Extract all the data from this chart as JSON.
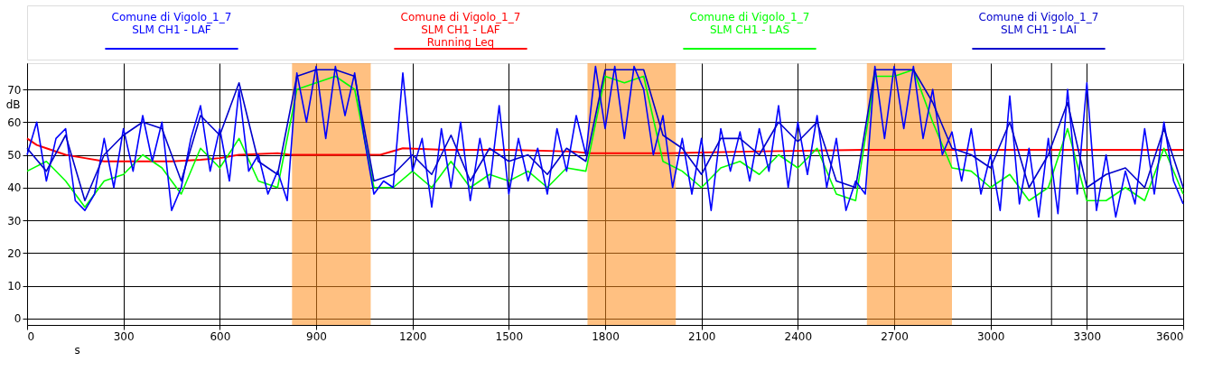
{
  "chart_data": {
    "type": "line",
    "xlabel": "s",
    "ylabel": "dB",
    "xlim": [
      0,
      3600
    ],
    "xticks": [
      0,
      300,
      600,
      900,
      1200,
      1500,
      1800,
      2100,
      2400,
      2700,
      3000,
      3300,
      3600
    ],
    "ylim": [
      -2,
      78
    ],
    "yticks": [
      0,
      10,
      20,
      30,
      40,
      50,
      60,
      70
    ],
    "grid": true,
    "legend": "top",
    "line_style": "solid",
    "marker": "none",
    "bands": [
      {
        "axis": "x",
        "from": 825,
        "to": 1070,
        "color": "#ff8c1a"
      },
      {
        "axis": "x",
        "from": 1745,
        "to": 2020,
        "color": "#ff8c1a"
      },
      {
        "axis": "x",
        "from": 2615,
        "to": 2880,
        "color": "#ff8c1a"
      }
    ],
    "ref_lines": [
      {
        "axis": "x",
        "value": 3190,
        "color": "#000000"
      }
    ],
    "series": [
      {
        "name": "Comune di Vigolo_1_7\nSLM CH1 - LAF\nRunning Leq",
        "color": "#ff0000",
        "x": [
          0,
          30,
          60,
          120,
          180,
          240,
          300,
          450,
          540,
          600,
          660,
          780,
          820,
          900,
          1100,
          1170,
          1300,
          1500,
          1700,
          1750,
          2000,
          2250,
          2600,
          2700,
          3000,
          3600
        ],
        "values": [
          55,
          53,
          52,
          50,
          49,
          48,
          48,
          48,
          48.5,
          49,
          50,
          50.5,
          50,
          50,
          50,
          52,
          51.5,
          51.5,
          51,
          50.5,
          50.5,
          51,
          51.5,
          51.5,
          51.5,
          51.5
        ]
      },
      {
        "name": "Comune di Vigolo_1_7\nSLM CH1 - LAS",
        "color": "#00ff00",
        "x": [
          0,
          60,
          120,
          180,
          240,
          300,
          360,
          420,
          480,
          540,
          600,
          660,
          720,
          780,
          840,
          900,
          960,
          1020,
          1080,
          1140,
          1200,
          1260,
          1320,
          1380,
          1440,
          1500,
          1560,
          1620,
          1680,
          1740,
          1800,
          1860,
          1920,
          1980,
          2040,
          2100,
          2160,
          2220,
          2280,
          2340,
          2400,
          2460,
          2520,
          2580,
          2640,
          2700,
          2760,
          2820,
          2880,
          2940,
          3000,
          3060,
          3120,
          3180,
          3240,
          3300,
          3360,
          3420,
          3480,
          3540,
          3600
        ],
        "values": [
          45,
          48,
          42,
          34,
          42,
          44,
          50,
          46,
          38,
          52,
          46,
          55,
          42,
          40,
          70,
          72,
          74,
          70,
          40,
          40,
          45,
          40,
          48,
          40,
          44,
          42,
          45,
          40,
          46,
          45,
          74,
          72,
          74,
          48,
          45,
          40,
          46,
          48,
          44,
          50,
          46,
          52,
          38,
          36,
          74,
          74,
          76,
          60,
          46,
          45,
          40,
          44,
          36,
          40,
          58,
          36,
          36,
          40,
          36,
          52,
          38
        ]
      },
      {
        "name": "Comune di Vigolo_1_7\nSLM CH1 - LAF",
        "color": "#0000ff",
        "x": [
          0,
          30,
          60,
          90,
          120,
          150,
          180,
          210,
          240,
          270,
          300,
          330,
          360,
          390,
          420,
          450,
          480,
          510,
          540,
          570,
          600,
          630,
          660,
          690,
          720,
          750,
          780,
          810,
          840,
          870,
          900,
          930,
          960,
          990,
          1020,
          1050,
          1080,
          1110,
          1140,
          1170,
          1200,
          1230,
          1260,
          1290,
          1320,
          1350,
          1380,
          1410,
          1440,
          1470,
          1500,
          1530,
          1560,
          1590,
          1620,
          1650,
          1680,
          1710,
          1740,
          1770,
          1800,
          1830,
          1860,
          1890,
          1920,
          1950,
          1980,
          2010,
          2040,
          2070,
          2100,
          2130,
          2160,
          2190,
          2220,
          2250,
          2280,
          2310,
          2340,
          2370,
          2400,
          2430,
          2460,
          2490,
          2520,
          2550,
          2580,
          2610,
          2640,
          2670,
          2700,
          2730,
          2760,
          2790,
          2820,
          2850,
          2880,
          2910,
          2940,
          2970,
          3000,
          3030,
          3060,
          3090,
          3120,
          3150,
          3180,
          3210,
          3240,
          3270,
          3300,
          3330,
          3360,
          3390,
          3420,
          3450,
          3480,
          3510,
          3540,
          3570,
          3600
        ],
        "values": [
          50,
          60,
          42,
          55,
          58,
          36,
          33,
          38,
          55,
          40,
          58,
          45,
          62,
          48,
          60,
          33,
          40,
          55,
          65,
          45,
          58,
          42,
          70,
          45,
          50,
          38,
          45,
          36,
          75,
          60,
          77,
          55,
          77,
          62,
          75,
          55,
          38,
          42,
          40,
          75,
          45,
          55,
          34,
          58,
          40,
          60,
          36,
          55,
          40,
          65,
          38,
          55,
          42,
          52,
          38,
          58,
          45,
          62,
          50,
          77,
          58,
          77,
          55,
          77,
          70,
          50,
          62,
          40,
          55,
          38,
          55,
          33,
          58,
          45,
          57,
          42,
          58,
          45,
          65,
          40,
          60,
          44,
          62,
          40,
          55,
          33,
          42,
          38,
          77,
          55,
          77,
          58,
          77,
          55,
          70,
          50,
          57,
          42,
          58,
          38,
          50,
          33,
          68,
          35,
          52,
          31,
          55,
          32,
          70,
          38,
          72,
          33,
          50,
          31,
          45,
          35,
          58,
          38,
          60,
          42,
          35
        ]
      },
      {
        "name": "Comune di Vigolo_1_7\nSLM CH1 - LAI",
        "color": "#0000cc",
        "x": [
          0,
          60,
          120,
          180,
          240,
          300,
          360,
          420,
          480,
          540,
          600,
          660,
          720,
          780,
          840,
          900,
          960,
          1020,
          1080,
          1140,
          1200,
          1260,
          1320,
          1380,
          1440,
          1500,
          1560,
          1620,
          1680,
          1740,
          1800,
          1860,
          1920,
          1980,
          2040,
          2100,
          2160,
          2220,
          2280,
          2340,
          2400,
          2460,
          2520,
          2580,
          2640,
          2700,
          2760,
          2820,
          2880,
          2940,
          3000,
          3060,
          3120,
          3180,
          3240,
          3300,
          3360,
          3420,
          3480,
          3540,
          3600
        ],
        "values": [
          52,
          45,
          56,
          36,
          50,
          56,
          60,
          58,
          42,
          62,
          56,
          72,
          48,
          44,
          74,
          76,
          76,
          74,
          42,
          44,
          50,
          44,
          56,
          42,
          52,
          48,
          50,
          44,
          52,
          48,
          76,
          76,
          76,
          56,
          52,
          44,
          55,
          55,
          50,
          60,
          54,
          60,
          42,
          40,
          76,
          76,
          76,
          66,
          52,
          50,
          46,
          60,
          40,
          50,
          66,
          40,
          44,
          46,
          40,
          58,
          40
        ]
      }
    ]
  }
}
